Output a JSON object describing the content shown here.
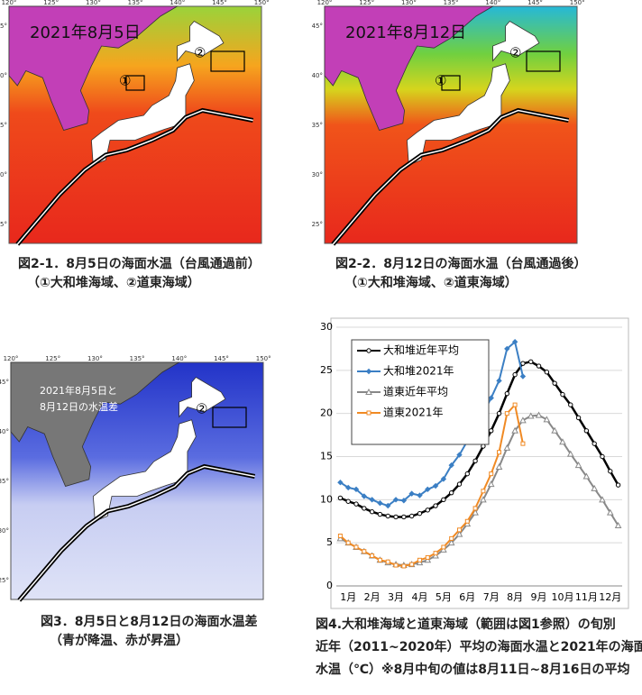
{
  "maps": [
    {
      "date": "2021年8月5日",
      "marker1": "①",
      "marker2": "②",
      "caption": [
        "図2-1．8月5日の海面水温（台風通過前）",
        "（①大和堆海域、②道東海域）"
      ]
    },
    {
      "date": "2021年8月12日",
      "marker1": "①",
      "marker2": "②",
      "caption": [
        "図2-2．8月12日の海面水温（台風通過後）",
        "（①大和堆海域、②道東海域）"
      ]
    },
    {
      "date": [
        "2021年8月5日と",
        "8月12日の水温差"
      ],
      "marker2": "②",
      "caption": [
        "図3．8月5日と8月12日の海面水温差",
        "（青が降温、赤が昇温）"
      ]
    }
  ],
  "lon_labels": [
    "120°",
    "125°",
    "130°",
    "135°",
    "140°",
    "145°",
    "150°"
  ],
  "lat_labels": [
    "45°",
    "40°",
    "35°",
    "30°",
    "25°"
  ],
  "chart": {
    "type": "line",
    "categories": [
      "1月",
      "2月",
      "3月",
      "4月",
      "5月",
      "6月",
      "7月",
      "8月",
      "9月",
      "10月",
      "11月",
      "12月"
    ],
    "ylim": [
      0,
      30
    ],
    "yticks": [
      0,
      5,
      10,
      15,
      20,
      25,
      30
    ],
    "series": [
      {
        "name": "大和堆近年平均",
        "color": "#000000",
        "marker": "circle",
        "values": [
          10.2,
          9.8,
          9.5,
          9.0,
          8.6,
          8.3,
          8.1,
          8.0,
          8.0,
          8.1,
          8.4,
          8.8,
          9.3,
          10.0,
          10.8,
          11.8,
          13.0,
          14.5,
          16.2,
          18.0,
          20.0,
          22.3,
          24.5,
          25.8,
          26.0,
          25.5,
          24.8,
          23.5,
          22.2,
          21.0,
          19.5,
          18.0,
          16.5,
          15.0,
          13.3,
          11.7
        ]
      },
      {
        "name": "大和堆2021年",
        "color": "#3b7fc4",
        "marker": "diamond",
        "values": [
          12.0,
          11.4,
          11.2,
          10.4,
          10.0,
          9.6,
          9.3,
          10.0,
          9.9,
          10.7,
          10.5,
          11.2,
          11.6,
          12.4,
          14.0,
          15.2,
          16.8,
          18.3,
          20.0,
          21.8,
          23.8,
          27.5,
          28.3,
          24.3,
          null,
          null,
          null,
          null,
          null,
          null,
          null,
          null,
          null,
          null,
          null,
          null
        ]
      },
      {
        "name": "道東近年平均",
        "color": "#888888",
        "marker": "triangle",
        "values": [
          5.5,
          5.0,
          4.5,
          4.0,
          3.5,
          3.0,
          2.7,
          2.5,
          2.4,
          2.5,
          2.7,
          3.0,
          3.5,
          4.2,
          5.0,
          6.0,
          7.2,
          8.5,
          10.0,
          11.8,
          13.8,
          16.0,
          18.0,
          19.2,
          19.7,
          19.8,
          19.3,
          18.0,
          16.7,
          15.3,
          14.0,
          12.7,
          11.3,
          10.0,
          8.5,
          7.0
        ]
      },
      {
        "name": "道東2021年",
        "color": "#f08a24",
        "marker": "square",
        "values": [
          5.8,
          5.0,
          4.5,
          4.0,
          3.5,
          3.0,
          2.8,
          2.4,
          2.3,
          2.5,
          3.0,
          3.3,
          3.8,
          4.5,
          5.5,
          6.5,
          7.5,
          9.0,
          11.0,
          13.0,
          15.5,
          20.0,
          21.0,
          16.5,
          null,
          null,
          null,
          null,
          null,
          null,
          null,
          null,
          null,
          null,
          null,
          null
        ]
      }
    ],
    "caption": [
      "図4.大和堆海域と道東海域（範囲は図1参照）の旬別",
      "近年（2011~2020年）平均の海面水温と2021年の海面",
      "水温（℃）※8月中旬の値は8月11日~8月16日の平均"
    ]
  }
}
